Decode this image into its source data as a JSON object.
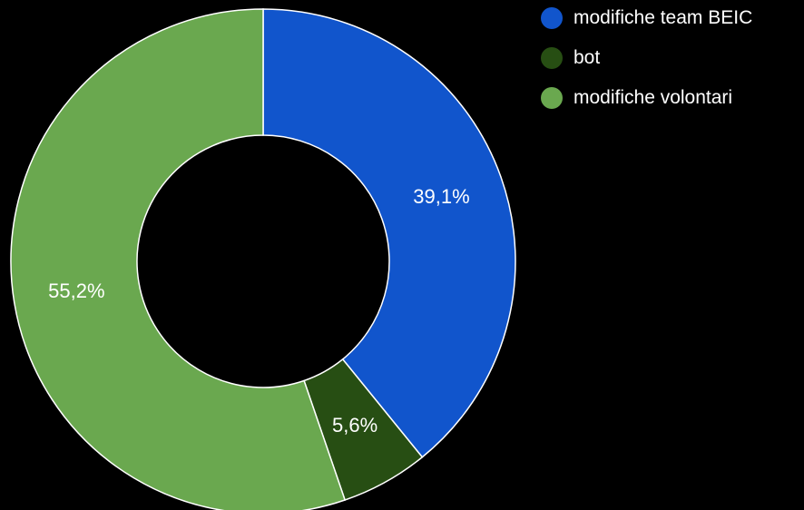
{
  "chart_data": {
    "type": "pie",
    "donut": true,
    "title": "",
    "legend_position": "top-right",
    "slices": [
      {
        "name": "modifiche team BEIC",
        "value": 39.1,
        "label": "39,1%",
        "color": "#1155cc"
      },
      {
        "name": "bot",
        "value": 5.6,
        "label": "5,6%",
        "color": "#274e13"
      },
      {
        "name": "modifiche volontari",
        "value": 55.2,
        "label": "55,2%",
        "color": "#6aa84f"
      }
    ]
  },
  "legend": {
    "items": [
      {
        "label": "modifiche team BEIC",
        "color": "#1155cc"
      },
      {
        "label": "bot",
        "color": "#274e13"
      },
      {
        "label": "modifiche volontari",
        "color": "#6aa84f"
      }
    ]
  },
  "colors": {
    "background": "#000000",
    "slice_border": "#ffffff",
    "label_text": "#ffffff"
  }
}
